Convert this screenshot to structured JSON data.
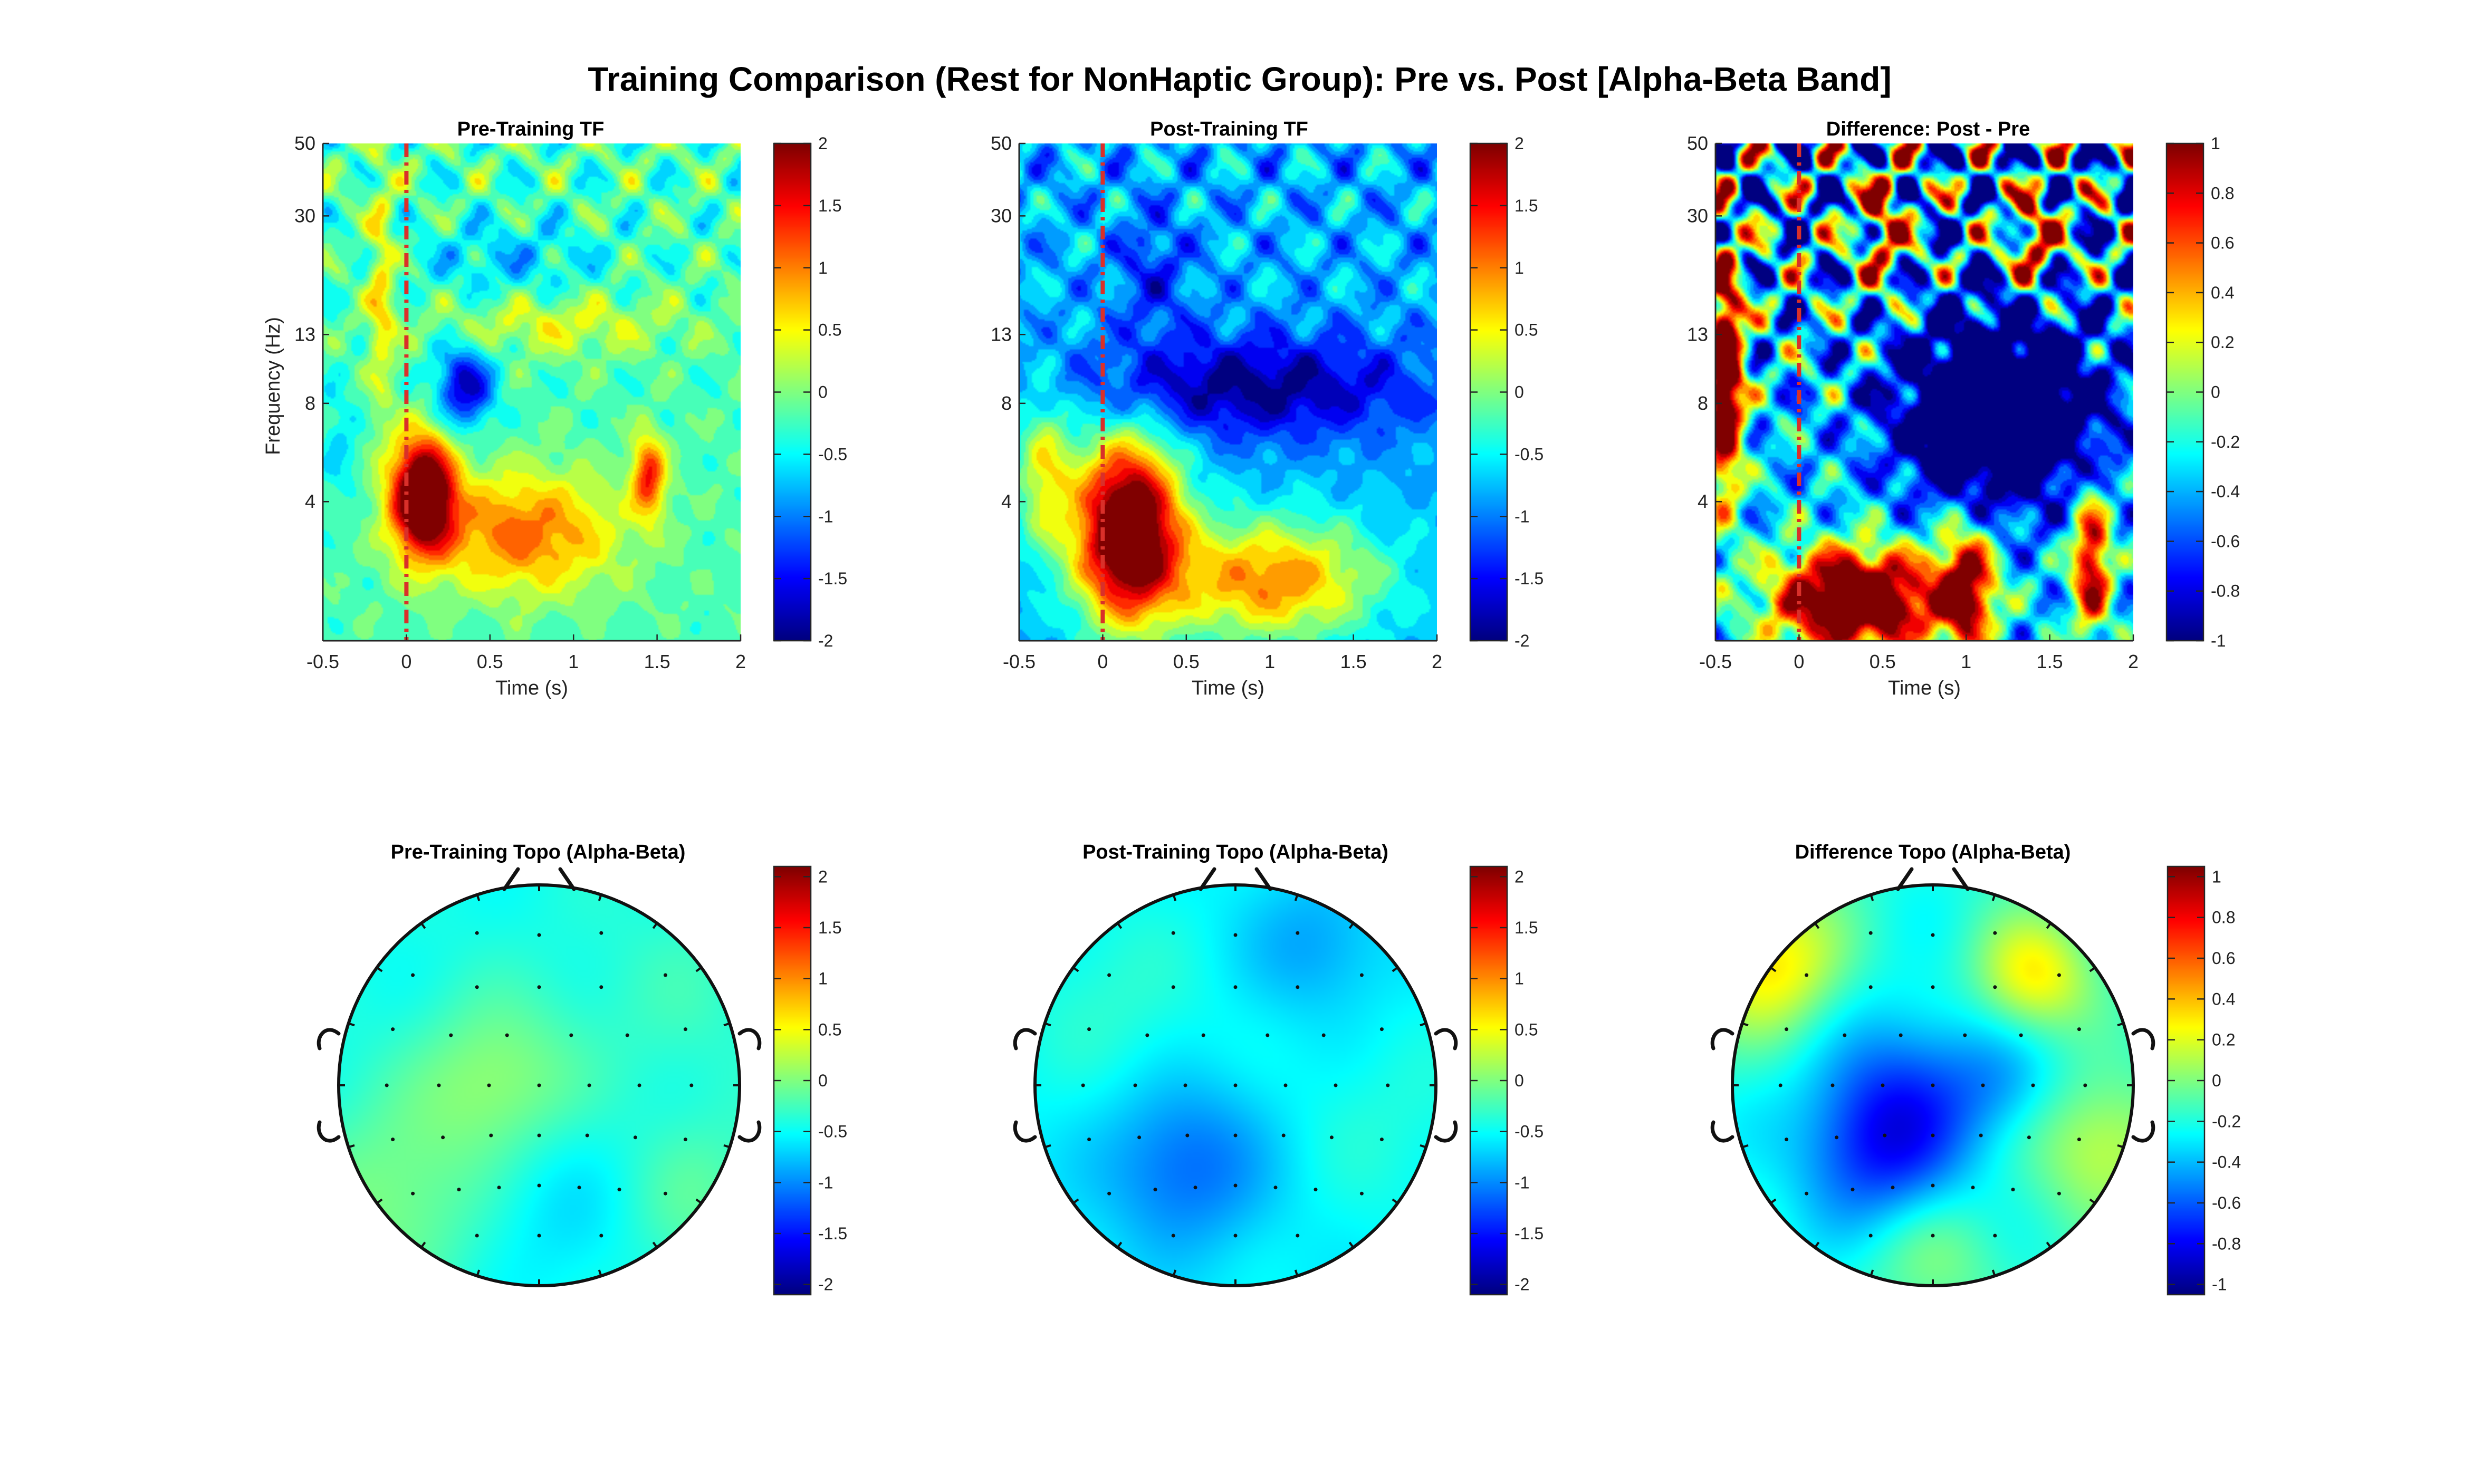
{
  "figure": {
    "title": "Training Comparison (Rest for NonHaptic Group): Pre vs. Post [Alpha-Beta Band]"
  },
  "colors": {
    "colormap": "jet",
    "event_marker": "#d9302a",
    "axis": "#262626"
  },
  "chart_data": [
    {
      "type": "heatmap",
      "id": "pre_tf",
      "title": "Pre-Training TF",
      "xlabel": "Time (s)",
      "ylabel": "Frequency (Hz)",
      "xlim": [
        -0.5,
        2
      ],
      "ylim": [
        1.5,
        50
      ],
      "yscale": "log",
      "xticks": [
        -0.5,
        0,
        0.5,
        1,
        1.5,
        2
      ],
      "xtick_labels": [
        "-0.5",
        "0",
        "0.5",
        "1",
        "1.5",
        "2"
      ],
      "yticks": [
        4,
        8,
        13,
        30,
        50
      ],
      "ytick_labels": [
        "4",
        "8",
        "13",
        "30",
        "50"
      ],
      "event_line_x": 0,
      "clim": [
        -2,
        2
      ],
      "colorbar_ticks": [
        -2,
        -1.5,
        -1,
        -0.5,
        0,
        0.5,
        1,
        1.5,
        2
      ],
      "colorbar_tick_labels": [
        "-2",
        "-1.5",
        "-1",
        "-0.5",
        "0",
        "0.5",
        "1",
        "1.5",
        "2"
      ],
      "baseline": -0.2,
      "components": [
        {
          "t": 0.1,
          "f": 4.2,
          "st": 0.13,
          "sf": 0.28,
          "a": 3.2
        },
        {
          "t": 0.7,
          "f": 3.2,
          "st": 0.4,
          "sf": 0.3,
          "a": 1.3
        },
        {
          "t": 1.45,
          "f": 4.8,
          "st": 0.07,
          "sf": 0.2,
          "a": 1.6
        },
        {
          "t": 0.35,
          "f": 9,
          "st": 0.12,
          "sf": 0.2,
          "a": -1.6
        },
        {
          "t": -0.15,
          "f": 18,
          "st": 0.06,
          "sf": 0.6,
          "a": 0.8
        },
        {
          "t": 0.9,
          "f": 14,
          "st": 0.5,
          "sf": 0.15,
          "a": 0.6
        },
        {
          "t": 0.6,
          "f": 22,
          "st": 0.4,
          "sf": 0.2,
          "a": -0.5
        },
        {
          "t": -0.4,
          "f": 6,
          "st": 0.08,
          "sf": 0.3,
          "a": -0.4
        }
      ],
      "texture": 0.45
    },
    {
      "type": "heatmap",
      "id": "post_tf",
      "title": "Post-Training TF",
      "xlabel": "Time (s)",
      "ylabel": "",
      "xlim": [
        -0.5,
        2
      ],
      "ylim": [
        1.5,
        50
      ],
      "yscale": "log",
      "xticks": [
        -0.5,
        0,
        0.5,
        1,
        1.5,
        2
      ],
      "xtick_labels": [
        "-0.5",
        "0",
        "0.5",
        "1",
        "1.5",
        "2"
      ],
      "yticks": [
        4,
        8,
        13,
        30,
        50
      ],
      "ytick_labels": [
        "4",
        "8",
        "13",
        "30",
        "50"
      ],
      "event_line_x": 0,
      "clim": [
        -2,
        2
      ],
      "colorbar_ticks": [
        -2,
        -1.5,
        -1,
        -0.5,
        0,
        0.5,
        1,
        1.5,
        2
      ],
      "colorbar_tick_labels": [
        "-2",
        "-1.5",
        "-1",
        "-0.5",
        "0",
        "0.5",
        "1",
        "1.5",
        "2"
      ],
      "baseline": -0.8,
      "components": [
        {
          "t": 0.15,
          "f": 3.3,
          "st": 0.22,
          "sf": 0.45,
          "a": 3.6
        },
        {
          "t": 1.0,
          "f": 2.3,
          "st": 0.45,
          "sf": 0.3,
          "a": 1.8
        },
        {
          "t": 0.9,
          "f": 9,
          "st": 0.7,
          "sf": 0.25,
          "a": -1.2
        },
        {
          "t": -0.35,
          "f": 5,
          "st": 0.12,
          "sf": 0.4,
          "a": 1.2
        },
        {
          "t": 0.3,
          "f": 20,
          "st": 0.15,
          "sf": 0.3,
          "a": -0.6
        }
      ],
      "texture": 0.5
    },
    {
      "type": "heatmap",
      "id": "diff_tf",
      "title": "Difference: Post - Pre",
      "xlabel": "Time (s)",
      "ylabel": "",
      "xlim": [
        -0.5,
        2
      ],
      "ylim": [
        1.5,
        50
      ],
      "yscale": "log",
      "xticks": [
        -0.5,
        0,
        0.5,
        1,
        1.5,
        2
      ],
      "xtick_labels": [
        "-0.5",
        "0",
        "0.5",
        "1",
        "1.5",
        "2"
      ],
      "yticks": [
        4,
        8,
        13,
        30,
        50
      ],
      "ytick_labels": [
        "4",
        "8",
        "13",
        "30",
        "50"
      ],
      "event_line_x": 0,
      "clim": [
        -1,
        1
      ],
      "colorbar_ticks": [
        -1,
        -0.8,
        -0.6,
        -0.4,
        -0.2,
        0,
        0.2,
        0.4,
        0.6,
        0.8,
        1
      ],
      "colorbar_tick_labels": [
        "-1",
        "-0.8",
        "-0.6",
        "-0.4",
        "-0.2",
        "0",
        "0.2",
        "0.4",
        "0.6",
        "0.8",
        "1"
      ],
      "baseline": -0.35,
      "components": [
        {
          "t": 0.35,
          "f": 2.0,
          "st": 0.35,
          "sf": 0.25,
          "a": 2.0
        },
        {
          "t": 1.0,
          "f": 2.2,
          "st": 0.12,
          "sf": 0.3,
          "a": 1.4
        },
        {
          "t": 1.75,
          "f": 2.6,
          "st": 0.08,
          "sf": 0.35,
          "a": 1.4
        },
        {
          "t": -0.45,
          "f": 10,
          "st": 0.08,
          "sf": 0.6,
          "a": 2.0
        },
        {
          "t": 1.2,
          "f": 8,
          "st": 0.4,
          "sf": 0.45,
          "a": -1.8
        },
        {
          "t": 0.5,
          "f": 28,
          "st": 0.1,
          "sf": 0.3,
          "a": 1.0
        },
        {
          "t": 1.4,
          "f": 25,
          "st": 0.1,
          "sf": 0.25,
          "a": 1.1
        }
      ],
      "texture": 1.1
    },
    {
      "type": "heatmap",
      "id": "pre_topo",
      "subtype": "topographic",
      "title": "Pre-Training Topo (Alpha-Beta)",
      "clim": [
        -2.1,
        2.1
      ],
      "colorbar_ticks": [
        -2,
        -1.5,
        -1,
        -0.5,
        0,
        0.5,
        1,
        1.5,
        2
      ],
      "colorbar_tick_labels": [
        "-2",
        "-1.5",
        "-1",
        "-0.5",
        "0",
        "0.5",
        "1",
        "1.5",
        "2"
      ],
      "baseline": -0.45,
      "blobs": [
        {
          "x": -0.2,
          "y": 0.0,
          "s": 0.3,
          "a": 0.55
        },
        {
          "x": -0.75,
          "y": -0.6,
          "s": 0.35,
          "a": 0.45
        },
        {
          "x": 0.75,
          "y": -0.55,
          "s": 0.3,
          "a": 0.3
        },
        {
          "x": 0.1,
          "y": -0.55,
          "s": 0.35,
          "a": -0.25
        },
        {
          "x": 0.7,
          "y": 0.45,
          "s": 0.35,
          "a": 0.15
        }
      ]
    },
    {
      "type": "heatmap",
      "id": "post_topo",
      "subtype": "topographic",
      "title": "Post-Training Topo (Alpha-Beta)",
      "clim": [
        -2.1,
        2.1
      ],
      "colorbar_ticks": [
        -2,
        -1.5,
        -1,
        -0.5,
        0,
        0.5,
        1,
        1.5,
        2
      ],
      "colorbar_tick_labels": [
        "-2",
        "-1.5",
        "-1",
        "-0.5",
        "0",
        "0.5",
        "1",
        "1.5",
        "2"
      ],
      "baseline": -0.55,
      "blobs": [
        {
          "x": -0.25,
          "y": -0.4,
          "s": 0.3,
          "a": -0.6
        },
        {
          "x": 0.4,
          "y": 0.7,
          "s": 0.25,
          "a": -0.35
        },
        {
          "x": -0.6,
          "y": 0.4,
          "s": 0.35,
          "a": 0.2
        },
        {
          "x": 0.75,
          "y": -0.2,
          "s": 0.35,
          "a": 0.15
        }
      ]
    },
    {
      "type": "heatmap",
      "id": "diff_topo",
      "subtype": "topographic",
      "title": "Difference Topo (Alpha-Beta)",
      "clim": [
        -1.05,
        1.05
      ],
      "colorbar_ticks": [
        -1,
        -0.8,
        -0.6,
        -0.4,
        -0.2,
        0,
        0.2,
        0.4,
        0.6,
        0.8,
        1
      ],
      "colorbar_tick_labels": [
        "-1",
        "-0.8",
        "-0.6",
        "-0.4",
        "-0.2",
        "0",
        "0.2",
        "0.4",
        "0.6",
        "0.8",
        "1"
      ],
      "baseline": -0.2,
      "blobs": [
        {
          "x": -0.8,
          "y": 0.6,
          "s": 0.25,
          "a": 0.5
        },
        {
          "x": 0.5,
          "y": 0.55,
          "s": 0.2,
          "a": 0.5
        },
        {
          "x": 0.85,
          "y": -0.3,
          "s": 0.25,
          "a": 0.35
        },
        {
          "x": -0.25,
          "y": -0.3,
          "s": 0.3,
          "a": -0.55
        },
        {
          "x": -0.1,
          "y": 0.1,
          "s": 0.3,
          "a": -0.2
        },
        {
          "x": 0.0,
          "y": -0.85,
          "s": 0.25,
          "a": 0.2
        },
        {
          "x": 0.35,
          "y": 0.0,
          "s": 0.2,
          "a": -0.2
        }
      ]
    }
  ]
}
